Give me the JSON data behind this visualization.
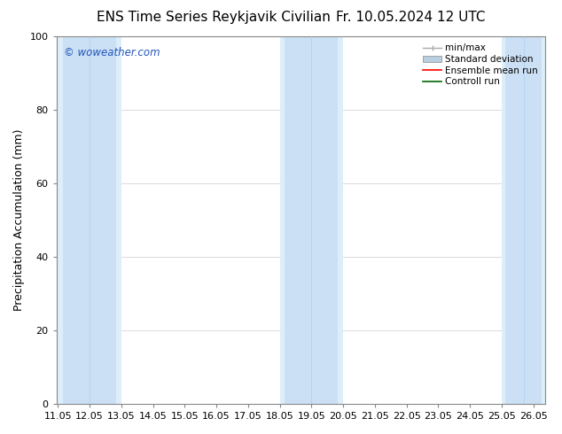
{
  "title": "ENS Time Series Reykjavik Civilian",
  "title2": "Fr. 10.05.2024 12 UTC",
  "ylabel": "Precipitation Accumulation (mm)",
  "watermark": "© woweather.com",
  "xlim": [
    10.95,
    26.38
  ],
  "ylim": [
    0,
    100
  ],
  "yticks": [
    0,
    20,
    40,
    60,
    80,
    100
  ],
  "xtick_labels": [
    "11.05",
    "12.05",
    "13.05",
    "14.05",
    "15.05",
    "16.05",
    "17.05",
    "18.05",
    "19.05",
    "20.05",
    "21.05",
    "22.05",
    "23.05",
    "24.05",
    "25.05",
    "26.05"
  ],
  "xtick_positions": [
    11.0,
    12.0,
    13.0,
    14.0,
    15.0,
    16.0,
    17.0,
    18.0,
    19.0,
    20.0,
    21.0,
    22.0,
    23.0,
    24.0,
    25.0,
    26.0
  ],
  "minmax_bands": [
    {
      "x_start": 11.0,
      "x_end": 12.0
    },
    {
      "x_start": 12.0,
      "x_end": 13.0
    },
    {
      "x_start": 18.0,
      "x_end": 19.0
    },
    {
      "x_start": 19.0,
      "x_end": 20.0
    },
    {
      "x_start": 25.0,
      "x_end": 26.38
    }
  ],
  "minmax_color": "#ddeefa",
  "std_color": "#cce0f5",
  "bg_color": "#ffffff",
  "legend_labels": [
    "min/max",
    "Standard deviation",
    "Ensemble mean run",
    "Controll run"
  ],
  "minmax_legend_color": "#aaaaaa",
  "std_legend_color": "#b8cfe0",
  "ensemble_color": "#ff0000",
  "control_color": "#006600",
  "title_fontsize": 11,
  "tick_fontsize": 8,
  "ylabel_fontsize": 9
}
